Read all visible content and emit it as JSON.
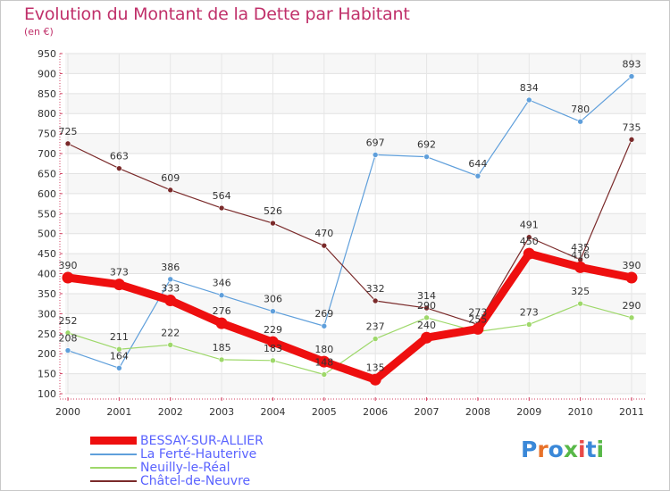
{
  "header": {
    "title": "Evolution du Montant de la Dette par Habitant",
    "subtitle": "(en €)"
  },
  "logo": {
    "text": "Proxiti",
    "colors": [
      "#3a88d8",
      "#e8722a",
      "#3a88d8",
      "#58b848",
      "#e84a48",
      "#3a88d8",
      "#58b848"
    ]
  },
  "chart_data": {
    "type": "line",
    "title": "Evolution du Montant de la Dette par Habitant",
    "ylabel": "(en €)",
    "xlabel": "",
    "x": [
      "2000",
      "2001",
      "2002",
      "2003",
      "2004",
      "2005",
      "2006",
      "2007",
      "2008",
      "2009",
      "2010",
      "2011"
    ],
    "ylim": [
      100,
      950
    ],
    "yticks": [
      "100",
      "150",
      "200",
      "250",
      "300",
      "350",
      "400",
      "450",
      "500",
      "550",
      "600",
      "650",
      "700",
      "750",
      "800",
      "850",
      "900",
      "950"
    ],
    "grid": true,
    "legend_position": "bottom-left",
    "series": [
      {
        "name": "BESSAY-SUR-ALLIER",
        "color": "#ee0f0f",
        "values": [
          390,
          373,
          333,
          276,
          229,
          180,
          135,
          240,
          262,
          450,
          416,
          390
        ],
        "labels": [
          "390",
          "373",
          "333",
          "276",
          "229",
          "180",
          "135",
          "240",
          "",
          "450",
          "416",
          "390"
        ]
      },
      {
        "name": "La Ferté-Hauterive",
        "color": "#5f9fdb",
        "values": [
          208,
          164,
          386,
          346,
          306,
          269,
          697,
          692,
          644,
          834,
          780,
          893
        ],
        "labels": [
          "208",
          "164",
          "386",
          "346",
          "306",
          "269",
          "697",
          "692",
          "644",
          "834",
          "780",
          "893"
        ]
      },
      {
        "name": "Neuilly-le-Réal",
        "color": "#9ed86a",
        "values": [
          252,
          211,
          222,
          185,
          183,
          148,
          237,
          290,
          255,
          273,
          325,
          290
        ],
        "labels": [
          "252",
          "211",
          "222",
          "185",
          "183",
          "148",
          "237",
          "290",
          "255",
          "273",
          "325",
          "290"
        ]
      },
      {
        "name": "Châtel-de-Neuvre",
        "color": "#7a2a2a",
        "values": [
          725,
          663,
          609,
          564,
          526,
          470,
          332,
          314,
          273,
          491,
          435,
          735
        ],
        "labels": [
          "725",
          "663",
          "609",
          "564",
          "526",
          "470",
          "332",
          "314",
          "273",
          "491",
          "435",
          "735"
        ]
      }
    ]
  }
}
